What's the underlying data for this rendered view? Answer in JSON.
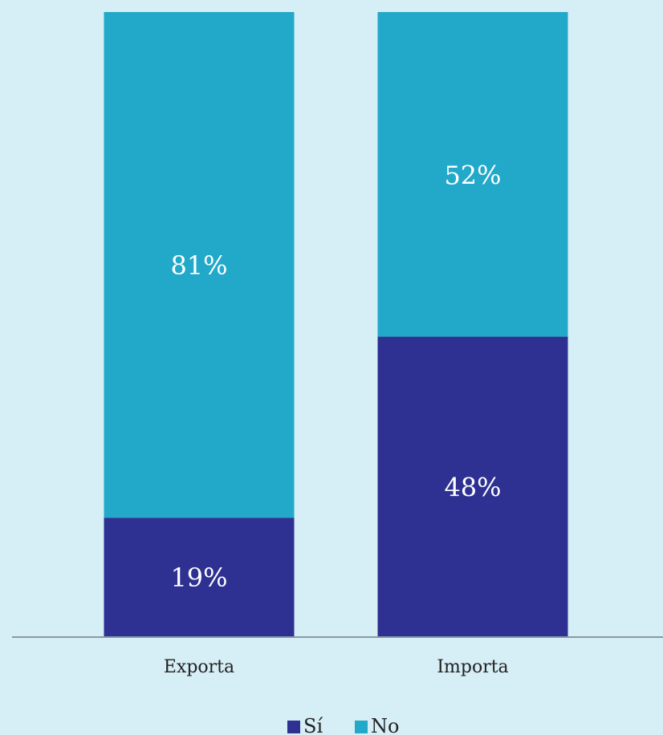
{
  "colors": {
    "background": "#d6eef5",
    "si": "#2e3192",
    "no": "#22a9c9",
    "axis": "#8a9aa0",
    "label_in_bar": "#ffffff",
    "category_text": "#222222"
  },
  "chart_data": {
    "type": "bar",
    "stacked": true,
    "percent": true,
    "categories": [
      "Exporta",
      "Importa"
    ],
    "series": [
      {
        "name": "Sí",
        "values": [
          19,
          48
        ],
        "labels": [
          "19%",
          "48%"
        ],
        "color": "#2e3192"
      },
      {
        "name": "No",
        "values": [
          81,
          52
        ],
        "labels": [
          "81%",
          "52%"
        ],
        "color": "#22a9c9"
      }
    ],
    "ylim": [
      0,
      100
    ],
    "grid": false,
    "legend_position": "bottom-center"
  }
}
